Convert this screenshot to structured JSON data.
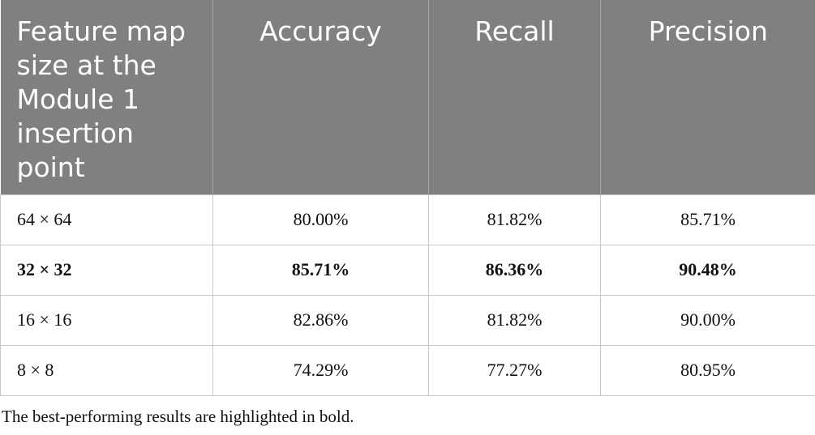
{
  "table": {
    "columns": [
      "Feature map size at the Module 1 insertion point",
      "Accuracy",
      "Recall",
      "Precision"
    ],
    "rows": [
      [
        "64 × 64",
        "80.00%",
        "81.82%",
        "85.71%"
      ],
      [
        "32 × 32",
        "85.71%",
        "86.36%",
        "90.48%"
      ],
      [
        "16 × 16",
        "82.86%",
        "81.82%",
        "90.00%"
      ],
      [
        "8 × 8",
        "74.29%",
        "77.27%",
        "80.95%"
      ]
    ],
    "bold_row": 1
  },
  "footnote": "The best-performing results are highlighted in bold."
}
